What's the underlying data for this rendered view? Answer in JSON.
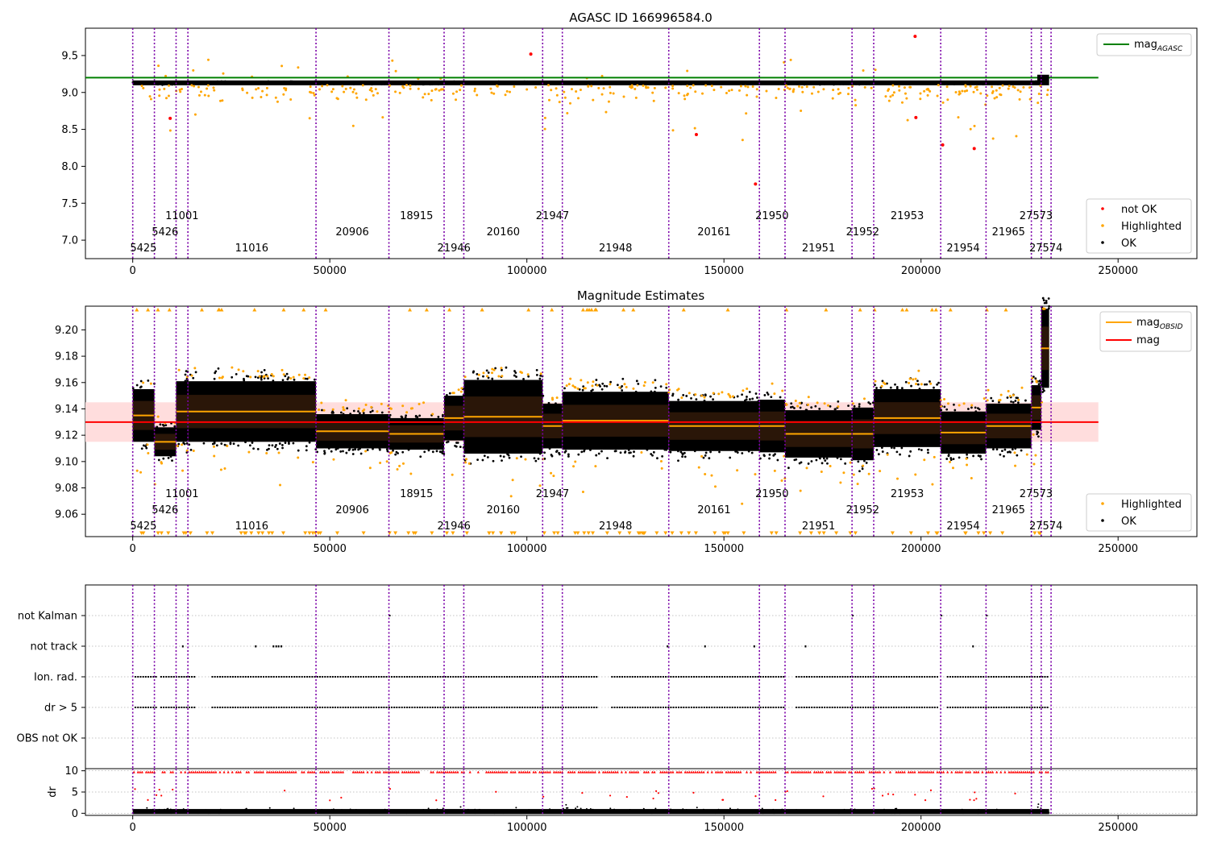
{
  "chart_data": [
    {
      "type": "scatter",
      "title": "AGASC ID 166996584.0",
      "xlim": [
        -12000,
        270000
      ],
      "ylim": [
        6.75,
        9.87
      ],
      "xticks": [
        0,
        50000,
        100000,
        150000,
        200000,
        250000
      ],
      "yticks": [
        7.0,
        7.5,
        8.0,
        8.5,
        9.0,
        9.5
      ],
      "obsid_boundaries": [
        0,
        5500,
        11000,
        14000,
        46500,
        65000,
        79000,
        84000,
        104000,
        109000,
        136000,
        159000,
        165500,
        182500,
        188000,
        205000,
        216500,
        228000,
        230500,
        233000
      ],
      "obsid_labels": [
        {
          "text": "5425",
          "x": 2700,
          "row": 0
        },
        {
          "text": "5426",
          "x": 8200,
          "row": 1
        },
        {
          "text": "11001",
          "x": 12500,
          "row": 2
        },
        {
          "text": "11016",
          "x": 30200,
          "row": 0
        },
        {
          "text": "20906",
          "x": 55700,
          "row": 1
        },
        {
          "text": "18915",
          "x": 72000,
          "row": 2
        },
        {
          "text": "21946",
          "x": 81500,
          "row": 0
        },
        {
          "text": "20160",
          "x": 94000,
          "row": 1
        },
        {
          "text": "21947",
          "x": 106500,
          "row": 2
        },
        {
          "text": "21948",
          "x": 122500,
          "row": 0
        },
        {
          "text": "20161",
          "x": 147500,
          "row": 1
        },
        {
          "text": "21950",
          "x": 162200,
          "row": 2
        },
        {
          "text": "21951",
          "x": 174000,
          "row": 0
        },
        {
          "text": "21952",
          "x": 185200,
          "row": 1
        },
        {
          "text": "21953",
          "x": 196500,
          "row": 2
        },
        {
          "text": "21954",
          "x": 210700,
          "row": 0
        },
        {
          "text": "21965",
          "x": 222200,
          "row": 1
        },
        {
          "text": "27573",
          "x": 229200,
          "row": 2
        },
        {
          "text": "27574",
          "x": 231700,
          "row": 0
        }
      ],
      "reference_line": {
        "name": "mag_AGASC",
        "value": 9.2,
        "x_end": 245000,
        "color": "#008000"
      },
      "series": [
        {
          "name": "not OK",
          "color": "#ff0000"
        },
        {
          "name": "Highlighted",
          "color": "#ffa500"
        },
        {
          "name": "OK",
          "color": "#000000"
        }
      ],
      "legend_top": {
        "label": "mag",
        "sub": "AGASC"
      },
      "legend_bottom": [
        "not OK",
        "Highlighted",
        "OK"
      ],
      "segment_levels": [
        9.135,
        9.115,
        9.138,
        9.138,
        9.123,
        9.121,
        9.133,
        9.134,
        9.127,
        9.131,
        9.127,
        9.127,
        9.121,
        9.121,
        9.133,
        9.122,
        9.127,
        9.141,
        9.186
      ],
      "outliers_not_ok": [
        [
          9500,
          8.65
        ],
        [
          101000,
          9.52
        ],
        [
          143000,
          8.43
        ],
        [
          158000,
          7.76
        ],
        [
          198500,
          9.76
        ],
        [
          198700,
          8.66
        ],
        [
          205500,
          8.29
        ],
        [
          213500,
          8.24
        ]
      ]
    },
    {
      "type": "scatter",
      "title": "Magnitude Estimates",
      "xlim": [
        -12000,
        270000
      ],
      "ylim": [
        9.043,
        9.218
      ],
      "xticks": [
        0,
        50000,
        100000,
        150000,
        200000,
        250000
      ],
      "yticks": [
        9.06,
        9.08,
        9.1,
        9.12,
        9.14,
        9.16,
        9.18,
        9.2
      ],
      "mag": {
        "name": "mag",
        "value": 9.13,
        "band": [
          9.115,
          9.145
        ],
        "x_end": 245000,
        "color": "#ff0000"
      },
      "mag_obsid": {
        "name": "mag_OBSID",
        "color": "#ffa500"
      },
      "segment_levels": [
        9.135,
        9.115,
        9.138,
        9.138,
        9.123,
        9.121,
        9.133,
        9.134,
        9.127,
        9.131,
        9.127,
        9.127,
        9.121,
        9.121,
        9.133,
        9.122,
        9.127,
        9.141,
        9.186
      ],
      "segment_spread": [
        0.02,
        0.011,
        0.023,
        0.023,
        0.013,
        0.012,
        0.017,
        0.028,
        0.017,
        0.022,
        0.019,
        0.02,
        0.018,
        0.02,
        0.022,
        0.016,
        0.017,
        0.017,
        0.03
      ],
      "legend_top": [
        {
          "label": "mag",
          "sub": "OBSID"
        },
        {
          "label": "mag",
          "sub": ""
        }
      ],
      "legend_bottom": [
        "Highlighted",
        "OK"
      ]
    },
    {
      "type": "scatter",
      "title": "",
      "xlim": [
        -12000,
        270000
      ],
      "categories": [
        "not Kalman",
        "not track",
        "Ion. rad.",
        "dr > 5",
        "OBS not OK"
      ],
      "xticks": [
        0,
        50000,
        100000,
        150000,
        200000,
        250000
      ]
    },
    {
      "type": "scatter",
      "title": "",
      "xlim": [
        -12000,
        270000
      ],
      "ylim": [
        -0.5,
        10.5
      ],
      "yticks": [
        0,
        5,
        10
      ],
      "ylabel": "dr",
      "xticks": [
        0,
        50000,
        100000,
        150000,
        200000,
        250000
      ]
    }
  ]
}
